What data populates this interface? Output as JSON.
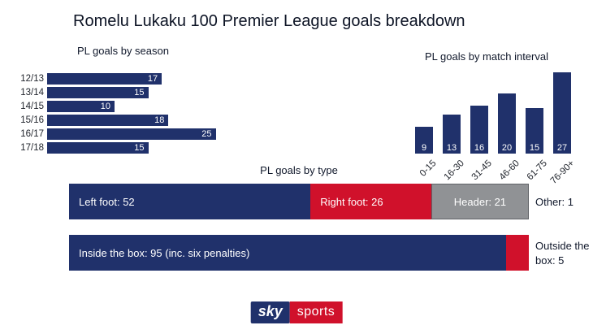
{
  "title": "Romelu Lukaku 100 Premier League goals breakdown",
  "colors": {
    "navy": "#20316b",
    "red": "#d0112b",
    "gray": "#909295"
  },
  "chart_data": [
    {
      "type": "bar",
      "orientation": "horizontal",
      "title": "PL goals by season",
      "categories": [
        "12/13",
        "13/14",
        "14/15",
        "15/16",
        "16/17",
        "17/18"
      ],
      "values": [
        17,
        15,
        10,
        18,
        25,
        15
      ],
      "xlim": [
        0,
        25
      ]
    },
    {
      "type": "bar",
      "orientation": "vertical",
      "title": "PL goals by match interval",
      "categories": [
        "0-15",
        "16-30",
        "31-45",
        "46-60",
        "61-75",
        "76-90+"
      ],
      "values": [
        9,
        13,
        16,
        20,
        15,
        27
      ],
      "ylim": [
        0,
        27
      ]
    },
    {
      "type": "stacked-bar",
      "title": "PL goals by type",
      "segments": [
        {
          "label": "Left foot: 52",
          "value": 52,
          "color": "navy"
        },
        {
          "label": "Right foot: 26",
          "value": 26,
          "color": "red"
        },
        {
          "label": "Header: 21",
          "value": 21,
          "color": "gray"
        }
      ],
      "outside_label": "Other: 1"
    },
    {
      "type": "stacked-bar",
      "title": "",
      "segments": [
        {
          "label": "Inside the box: 95 (inc. six penalties)",
          "value": 95,
          "color": "navy"
        },
        {
          "label": "",
          "value": 5,
          "color": "red"
        }
      ],
      "outside_label": "Outside the box: 5"
    }
  ],
  "footer": {
    "sky": "sky",
    "sports": "sports"
  }
}
